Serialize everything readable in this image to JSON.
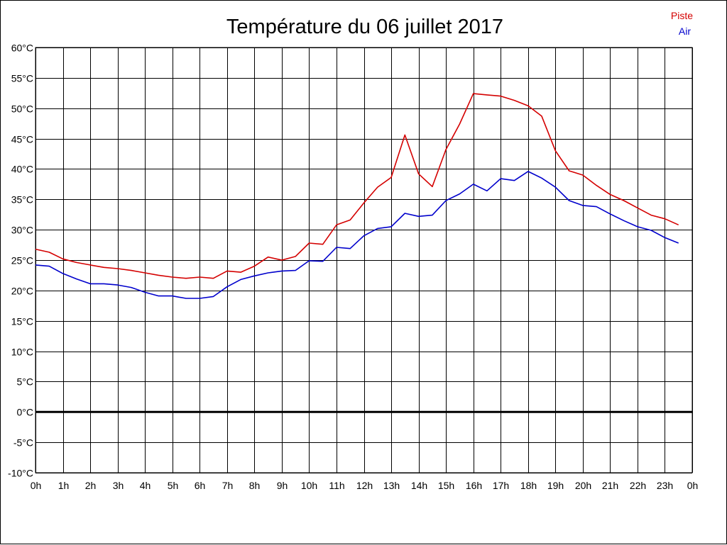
{
  "chart_data": {
    "type": "line",
    "title": "Température du 06 juillet 2017",
    "xlabel": "",
    "ylabel": "",
    "ylim": [
      -10,
      60
    ],
    "y_ticks": [
      "60°C",
      "55°C",
      "50°C",
      "45°C",
      "40°C",
      "35°C",
      "30°C",
      "25°C",
      "20°C",
      "15°C",
      "10°C",
      "5°C",
      "0°C",
      "-5°C",
      "-10°C"
    ],
    "x_ticks": [
      "0h",
      "1h",
      "2h",
      "3h",
      "4h",
      "5h",
      "6h",
      "7h",
      "8h",
      "9h",
      "10h",
      "11h",
      "12h",
      "13h",
      "14h",
      "15h",
      "16h",
      "17h",
      "18h",
      "19h",
      "20h",
      "21h",
      "22h",
      "23h",
      "0h"
    ],
    "x_range_hours": [
      0,
      24
    ],
    "grid": true,
    "zero_line": true,
    "legend_position": "top-right",
    "x": [
      0,
      0.5,
      1,
      1.5,
      2,
      2.5,
      3,
      3.5,
      4,
      4.5,
      5,
      5.5,
      6,
      6.5,
      7,
      7.5,
      8,
      8.5,
      9,
      9.5,
      10,
      10.5,
      11,
      11.5,
      12,
      12.5,
      13,
      13.5,
      14,
      14.5,
      15,
      15.5,
      16,
      16.5,
      17,
      17.5,
      18,
      18.5,
      19,
      19.5,
      20,
      20.5,
      21,
      21.5,
      22,
      22.5,
      23,
      23.5
    ],
    "series": [
      {
        "name": "Piste",
        "color": "#d40000",
        "values": [
          26.8,
          26.3,
          25.2,
          24.6,
          24.2,
          23.8,
          23.6,
          23.3,
          22.9,
          22.5,
          22.2,
          22.0,
          22.2,
          22.0,
          23.2,
          23.0,
          24.0,
          25.5,
          25.0,
          25.6,
          27.8,
          27.6,
          30.8,
          31.6,
          34.4,
          37.0,
          38.6,
          45.6,
          39.2,
          37.1,
          43.2,
          47.4,
          52.4,
          52.2,
          52.0,
          51.3,
          50.4,
          48.7,
          43.0,
          39.7,
          39.0,
          37.3,
          35.8,
          34.8,
          33.6,
          32.4,
          31.8,
          30.8
        ]
      },
      {
        "name": "Air",
        "color": "#0000cc",
        "values": [
          24.2,
          24.0,
          22.8,
          21.9,
          21.1,
          21.1,
          20.9,
          20.5,
          19.7,
          19.1,
          19.1,
          18.7,
          18.7,
          19.0,
          20.6,
          21.8,
          22.4,
          22.9,
          23.2,
          23.3,
          24.9,
          24.8,
          27.1,
          26.9,
          29.0,
          30.2,
          30.5,
          32.7,
          32.2,
          32.4,
          34.8,
          35.9,
          37.5,
          36.4,
          38.4,
          38.1,
          39.6,
          38.5,
          37.0,
          34.8,
          34.0,
          33.8,
          32.6,
          31.5,
          30.5,
          29.9,
          28.7,
          27.8
        ]
      }
    ]
  }
}
